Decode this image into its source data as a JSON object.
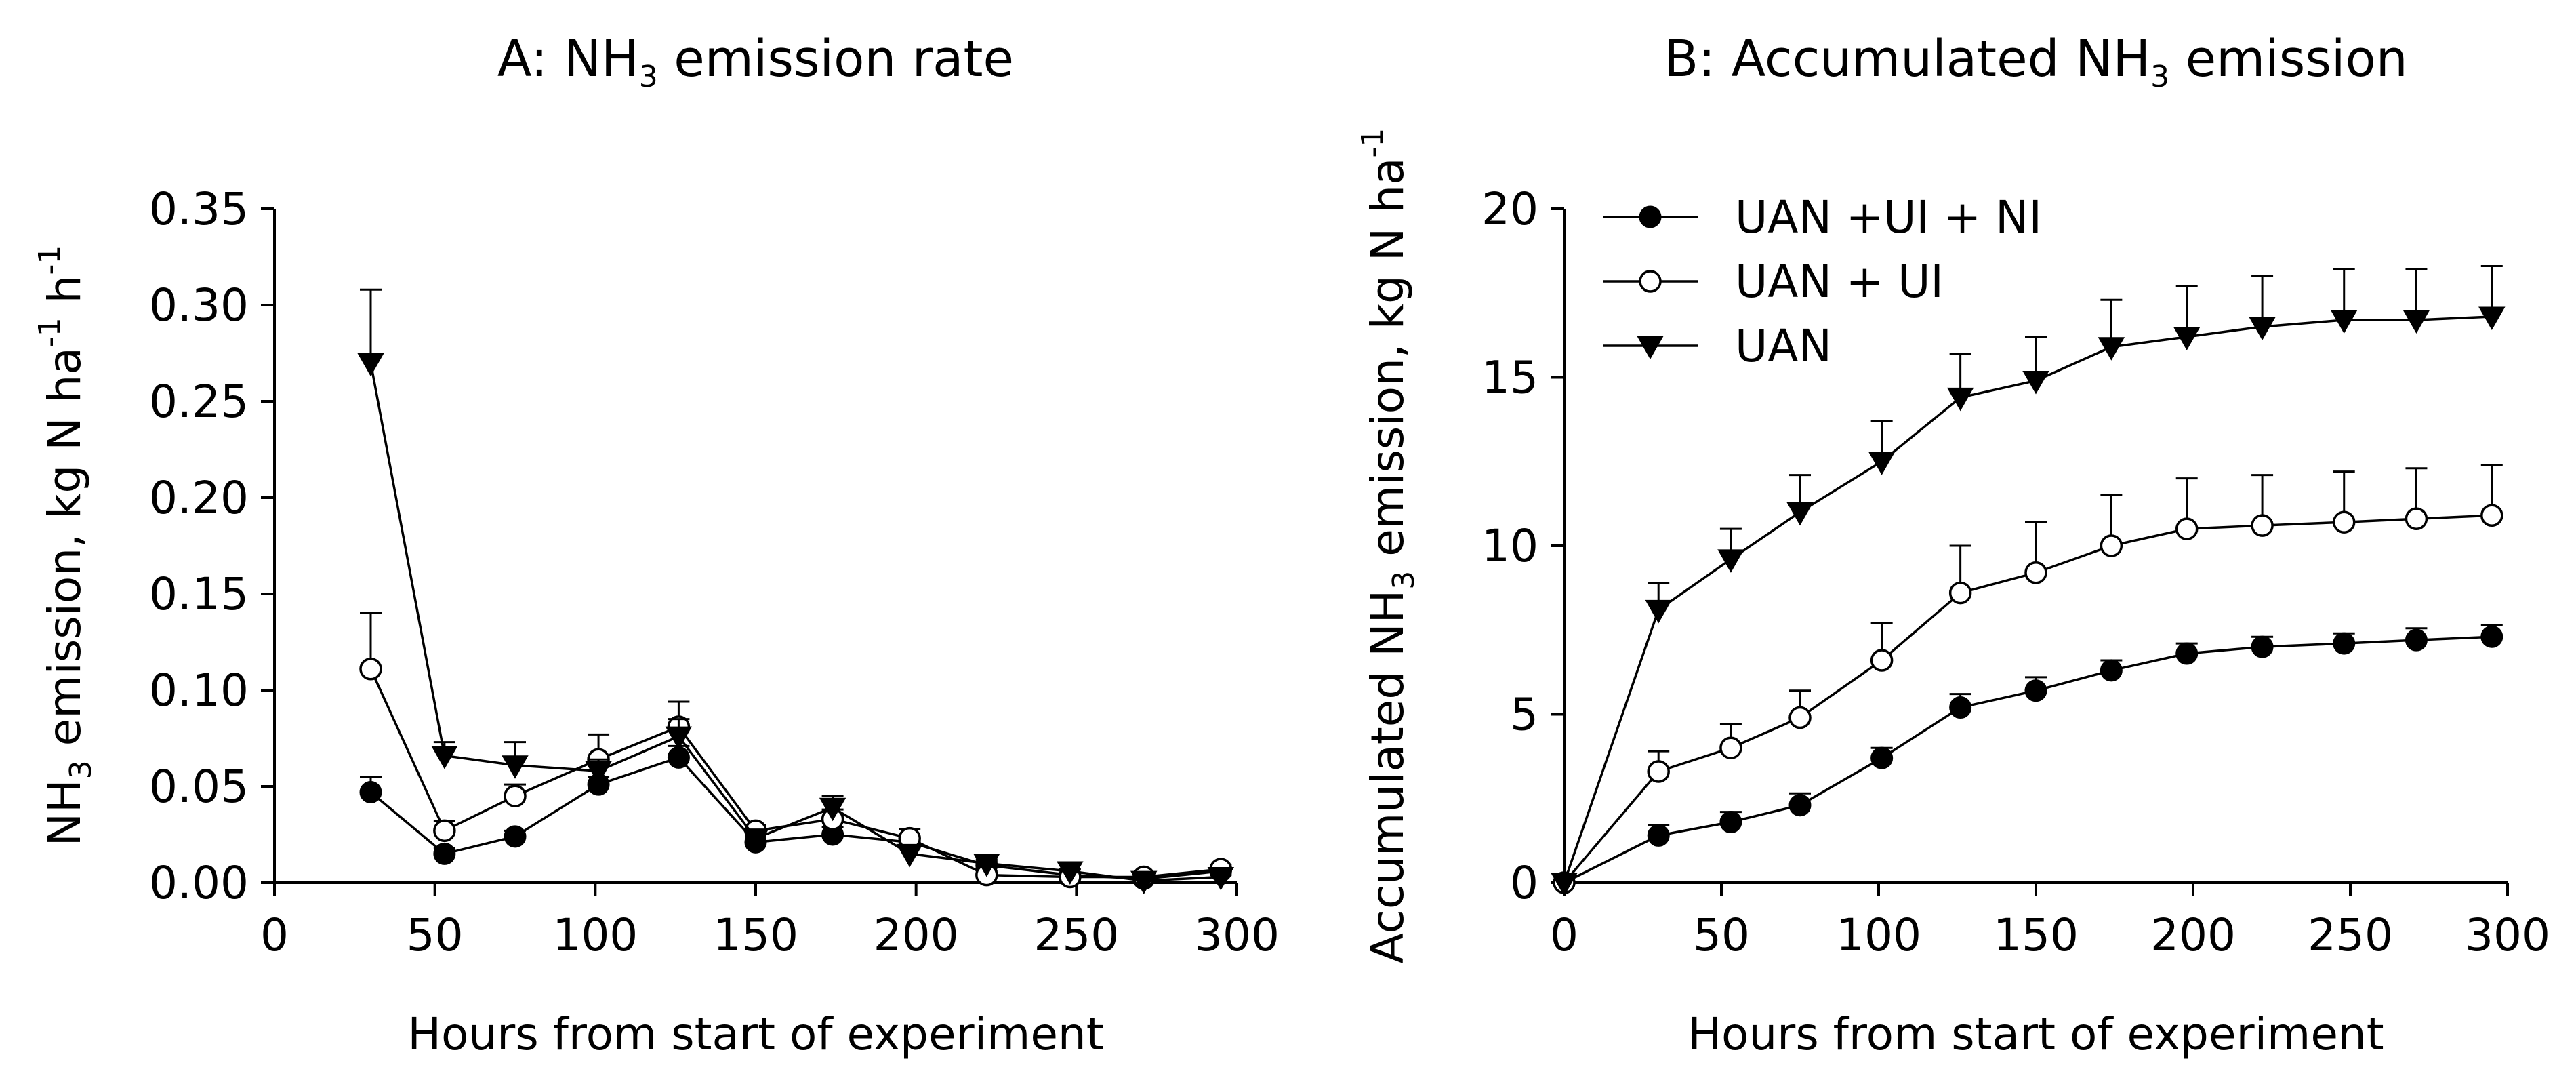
{
  "chart_data": [
    {
      "type": "line",
      "panel": "A",
      "title": "A: NH3 emission rate",
      "title_parts": [
        "A: NH",
        "3",
        " emission rate"
      ],
      "xlabel": "Hours from start of experiment",
      "ylabel": "NH3 emission, kg N ha-1 h-1",
      "ylabel_parts": [
        "NH",
        "3",
        " emission, kg N ha",
        "-1",
        " h",
        "-1"
      ],
      "xlim": [
        0,
        300
      ],
      "ylim": [
        0,
        0.35
      ],
      "xticks": [
        "0",
        "50",
        "100",
        "150",
        "200",
        "250",
        "300"
      ],
      "yticks": [
        "0.00",
        "0.05",
        "0.10",
        "0.15",
        "0.20",
        "0.25",
        "0.30",
        "0.35"
      ],
      "grid": false,
      "series": [
        {
          "name": "UAN +UI + NI",
          "marker": "filled-circle",
          "x": [
            30,
            53,
            75,
            101,
            126,
            150,
            174,
            198,
            222,
            248,
            271,
            295
          ],
          "y": [
            0.047,
            0.015,
            0.024,
            0.051,
            0.065,
            0.021,
            0.025,
            0.021,
            0.009,
            0.004,
            0.002,
            0.006
          ],
          "error": [
            0.008,
            0.003,
            0.003,
            0.004,
            0.006,
            0.003,
            0.004,
            0.003,
            0.002,
            0.001,
            0.001,
            0.002
          ]
        },
        {
          "name": "UAN + UI",
          "marker": "open-circle",
          "x": [
            30,
            53,
            75,
            101,
            126,
            150,
            174,
            198,
            222,
            248,
            271,
            295
          ],
          "y": [
            0.111,
            0.027,
            0.045,
            0.064,
            0.081,
            0.027,
            0.033,
            0.023,
            0.004,
            0.003,
            0.003,
            0.007
          ],
          "error": [
            0.029,
            0.005,
            0.006,
            0.013,
            0.013,
            0.003,
            0.005,
            0.005,
            0.002,
            0.001,
            0.001,
            0.002
          ]
        },
        {
          "name": "UAN",
          "marker": "filled-triangle-down",
          "x": [
            30,
            53,
            75,
            101,
            126,
            150,
            174,
            198,
            222,
            248,
            271,
            295
          ],
          "y": [
            0.27,
            0.066,
            0.061,
            0.058,
            0.076,
            0.023,
            0.039,
            0.015,
            0.01,
            0.006,
            0.001,
            0.003
          ],
          "error": [
            0.038,
            0.007,
            0.012,
            0.006,
            0.009,
            0.003,
            0.006,
            0.003,
            0.002,
            0.001,
            0.001,
            0.001
          ]
        }
      ]
    },
    {
      "type": "line",
      "panel": "B",
      "title": "B: Accumulated NH3 emission",
      "title_parts": [
        "B: Accumulated NH",
        "3",
        " emission"
      ],
      "xlabel": "Hours from start of experiment",
      "ylabel": "Accumulated NH3 emission, kg N ha-1",
      "ylabel_parts": [
        "Accumulated NH",
        "3",
        " emission, kg N ha",
        "-1"
      ],
      "xlim": [
        0,
        300
      ],
      "ylim": [
        0,
        20
      ],
      "xticks": [
        "0",
        "50",
        "100",
        "150",
        "200",
        "250",
        "300"
      ],
      "yticks": [
        "0",
        "5",
        "10",
        "15",
        "20"
      ],
      "grid": false,
      "legend_position": "top-left",
      "series": [
        {
          "name": "UAN +UI + NI",
          "marker": "filled-circle",
          "x": [
            0,
            30,
            53,
            75,
            101,
            126,
            150,
            174,
            198,
            222,
            248,
            271,
            295
          ],
          "y": [
            0,
            1.4,
            1.8,
            2.3,
            3.7,
            5.2,
            5.7,
            6.3,
            6.8,
            7.0,
            7.1,
            7.2,
            7.3
          ],
          "error": [
            0,
            0.3,
            0.3,
            0.35,
            0.3,
            0.4,
            0.4,
            0.3,
            0.3,
            0.3,
            0.3,
            0.35,
            0.35
          ]
        },
        {
          "name": "UAN + UI",
          "marker": "open-circle",
          "x": [
            0,
            30,
            53,
            75,
            101,
            126,
            150,
            174,
            198,
            222,
            248,
            271,
            295
          ],
          "y": [
            0,
            3.3,
            4.0,
            4.9,
            6.6,
            8.6,
            9.2,
            10.0,
            10.5,
            10.6,
            10.7,
            10.8,
            10.9
          ],
          "error": [
            0,
            0.6,
            0.7,
            0.8,
            1.1,
            1.4,
            1.5,
            1.5,
            1.5,
            1.5,
            1.5,
            1.5,
            1.5
          ]
        },
        {
          "name": "UAN",
          "marker": "filled-triangle-down",
          "x": [
            0,
            30,
            53,
            75,
            101,
            126,
            150,
            174,
            198,
            222,
            248,
            271,
            295
          ],
          "y": [
            0,
            8.1,
            9.6,
            11.0,
            12.5,
            14.4,
            14.9,
            15.9,
            16.2,
            16.5,
            16.7,
            16.7,
            16.8
          ],
          "error": [
            0,
            0.8,
            0.9,
            1.1,
            1.2,
            1.3,
            1.3,
            1.4,
            1.5,
            1.5,
            1.5,
            1.5,
            1.5
          ]
        }
      ]
    }
  ]
}
